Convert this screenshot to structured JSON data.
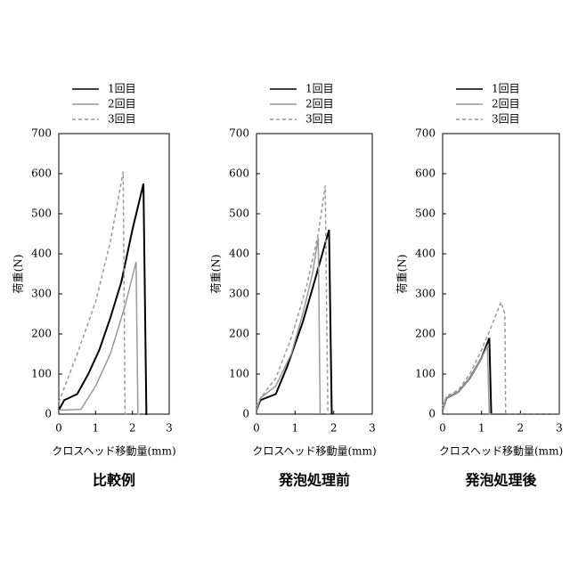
{
  "chart_data": [
    {
      "type": "line",
      "title": "比較例",
      "xlabel": "クロスヘッド移動量(mm)",
      "ylabel": "荷重(N)",
      "xlim": [
        0,
        3
      ],
      "xticks": [
        0,
        1,
        2,
        3
      ],
      "ylim": [
        0,
        700
      ],
      "yticks": [
        0,
        100,
        200,
        300,
        400,
        500,
        600,
        700
      ],
      "series": [
        {
          "name": "1回目",
          "color": "#000000",
          "style": "solid",
          "x": [
            0,
            0.15,
            0.5,
            0.8,
            1.1,
            1.4,
            1.7,
            2.0,
            2.3,
            2.38,
            2.4
          ],
          "values": [
            10,
            35,
            50,
            100,
            160,
            240,
            330,
            460,
            575,
            0,
            0
          ]
        },
        {
          "name": "2回目",
          "color": "#999999",
          "style": "solid",
          "x": [
            0,
            0.6,
            1.0,
            1.4,
            1.8,
            2.1,
            2.15,
            2.2
          ],
          "values": [
            10,
            12,
            70,
            150,
            270,
            380,
            0,
            0
          ]
        },
        {
          "name": "3回目",
          "color": "#999999",
          "style": "dashed",
          "x": [
            0,
            0.5,
            1.0,
            1.4,
            1.75,
            1.8,
            1.85
          ],
          "values": [
            30,
            150,
            280,
            430,
            605,
            0,
            0
          ]
        }
      ]
    },
    {
      "type": "line",
      "title": "発泡処理前",
      "xlabel": "クロスヘッド移動量(mm)",
      "ylabel": "荷重(N)",
      "xlim": [
        0,
        3
      ],
      "xticks": [
        0,
        1,
        2,
        3
      ],
      "ylim": [
        0,
        700
      ],
      "yticks": [
        0,
        100,
        200,
        300,
        400,
        500,
        600,
        700
      ],
      "series": [
        {
          "name": "1回目",
          "color": "#000000",
          "style": "solid",
          "x": [
            0,
            0.1,
            0.5,
            0.8,
            1.2,
            1.5,
            1.88,
            1.95
          ],
          "values": [
            10,
            35,
            50,
            120,
            230,
            330,
            460,
            0
          ]
        },
        {
          "name": "2回目",
          "color": "#999999",
          "style": "solid",
          "x": [
            0,
            0.1,
            0.5,
            0.9,
            1.2,
            1.45,
            1.6,
            1.65
          ],
          "values": [
            10,
            40,
            70,
            150,
            250,
            350,
            440,
            0
          ]
        },
        {
          "name": "3回目",
          "color": "#999999",
          "style": "dashed",
          "x": [
            0,
            0.1,
            0.5,
            0.9,
            1.3,
            1.6,
            1.78,
            1.85
          ],
          "values": [
            20,
            40,
            90,
            190,
            320,
            450,
            570,
            0
          ]
        }
      ]
    },
    {
      "type": "line",
      "title": "発泡処理後",
      "xlabel": "クロスヘッド移動量(mm)",
      "ylabel": "荷重(N)",
      "xlim": [
        0,
        3
      ],
      "xticks": [
        0,
        1,
        2,
        3
      ],
      "ylim": [
        0,
        700
      ],
      "yticks": [
        0,
        100,
        200,
        300,
        400,
        500,
        600,
        700
      ],
      "series": [
        {
          "name": "1回目",
          "color": "#000000",
          "style": "solid",
          "x": [
            0,
            0.1,
            0.4,
            0.7,
            1.0,
            1.2,
            1.25,
            3
          ],
          "values": [
            10,
            40,
            55,
            90,
            140,
            190,
            0,
            0
          ]
        },
        {
          "name": "2回目",
          "color": "#999999",
          "style": "solid",
          "x": [
            0,
            0.1,
            0.4,
            0.7,
            1.0,
            1.15,
            1.2,
            3
          ],
          "values": [
            10,
            40,
            55,
            90,
            140,
            170,
            0,
            0
          ]
        },
        {
          "name": "3回目",
          "color": "#999999",
          "style": "dashed",
          "x": [
            0,
            0.1,
            0.4,
            0.7,
            1.0,
            1.3,
            1.5,
            1.6,
            1.62,
            3
          ],
          "values": [
            20,
            45,
            60,
            100,
            160,
            230,
            280,
            250,
            0,
            0
          ]
        }
      ]
    }
  ]
}
